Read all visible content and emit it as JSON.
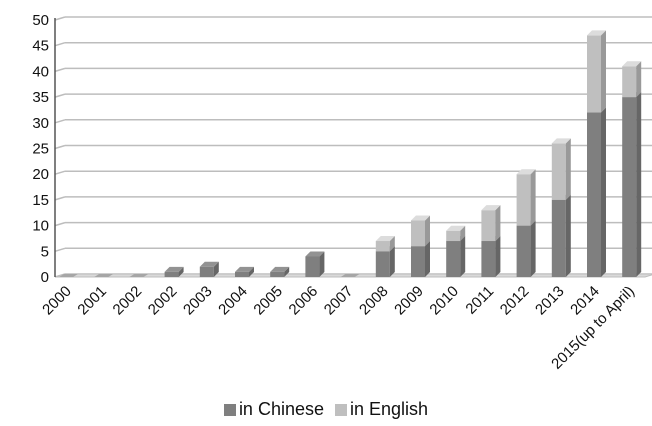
{
  "chart_data": {
    "type": "bar",
    "stacked": true,
    "title": "",
    "xlabel": "",
    "ylabel": "",
    "categories": [
      "2000",
      "2001",
      "2002",
      "2002",
      "2003",
      "2004",
      "2005",
      "2006",
      "2007",
      "2008",
      "2009",
      "2010",
      "2011",
      "2012",
      "2013",
      "2014",
      "2015(up to April)"
    ],
    "series": [
      {
        "name": "in Chinese",
        "color": "#7f7f7f",
        "values": [
          0,
          0,
          0,
          1,
          2,
          1,
          1,
          4,
          0,
          5,
          6,
          7,
          7,
          10,
          15,
          32,
          35
        ]
      },
      {
        "name": "in English",
        "color": "#bfbfbf",
        "values": [
          0,
          0,
          0,
          0,
          0,
          0,
          0,
          0,
          0,
          2,
          5,
          2,
          6,
          10,
          11,
          15,
          6
        ]
      }
    ],
    "ylim": [
      0,
      50
    ],
    "yticks": [
      0,
      5,
      10,
      15,
      20,
      25,
      30,
      35,
      40,
      45,
      50
    ],
    "grid": true,
    "legend_position": "bottom"
  }
}
